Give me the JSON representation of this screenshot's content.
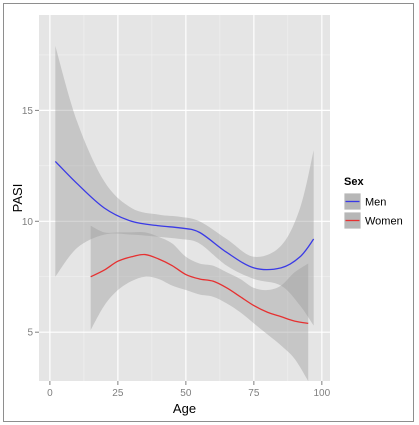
{
  "chart_data": {
    "type": "line",
    "title": "",
    "xlabel": "Age",
    "ylabel": "PASI",
    "xlim": [
      -4,
      103
    ],
    "ylim": [
      2.8,
      19.3
    ],
    "x_ticks": [
      0,
      25,
      50,
      75,
      100
    ],
    "y_ticks": [
      5,
      10,
      15
    ],
    "x_tick_labels": [
      "0",
      "25",
      "50",
      "75",
      "100"
    ],
    "y_tick_labels": [
      "5",
      "10",
      "15"
    ],
    "grid": true,
    "legend": {
      "title": "Sex",
      "position": "right"
    },
    "series": [
      {
        "name": "Men",
        "color": "#3a3ae6",
        "x": [
          2,
          10,
          20,
          30,
          40,
          48,
          55,
          65,
          75,
          85,
          92,
          97
        ],
        "y": [
          12.7,
          11.7,
          10.6,
          10.0,
          9.8,
          9.7,
          9.5,
          8.6,
          7.9,
          7.9,
          8.4,
          9.2
        ],
        "lower": [
          7.5,
          8.8,
          9.4,
          9.4,
          9.3,
          9.2,
          9.0,
          8.0,
          7.4,
          7.1,
          6.2,
          5.3
        ],
        "upper": [
          17.9,
          14.5,
          11.8,
          10.6,
          10.3,
          10.2,
          10.0,
          9.2,
          8.4,
          8.9,
          10.6,
          13.2
        ]
      },
      {
        "name": "Women",
        "color": "#e63030",
        "x": [
          15,
          20,
          25,
          30,
          35,
          40,
          45,
          50,
          55,
          60,
          65,
          70,
          75,
          80,
          85,
          90,
          95
        ],
        "y": [
          7.5,
          7.8,
          8.2,
          8.4,
          8.5,
          8.3,
          8.0,
          7.6,
          7.4,
          7.3,
          7.0,
          6.6,
          6.2,
          5.9,
          5.7,
          5.5,
          5.4
        ],
        "lower": [
          5.1,
          6.2,
          6.9,
          7.3,
          7.5,
          7.4,
          7.1,
          6.9,
          6.7,
          6.6,
          6.3,
          5.9,
          5.4,
          4.9,
          4.4,
          3.8,
          2.8
        ],
        "upper": [
          9.8,
          9.5,
          9.5,
          9.5,
          9.5,
          9.3,
          9.0,
          8.4,
          8.1,
          8.0,
          7.7,
          7.4,
          7.0,
          6.9,
          7.1,
          7.7,
          8.1
        ]
      }
    ]
  }
}
